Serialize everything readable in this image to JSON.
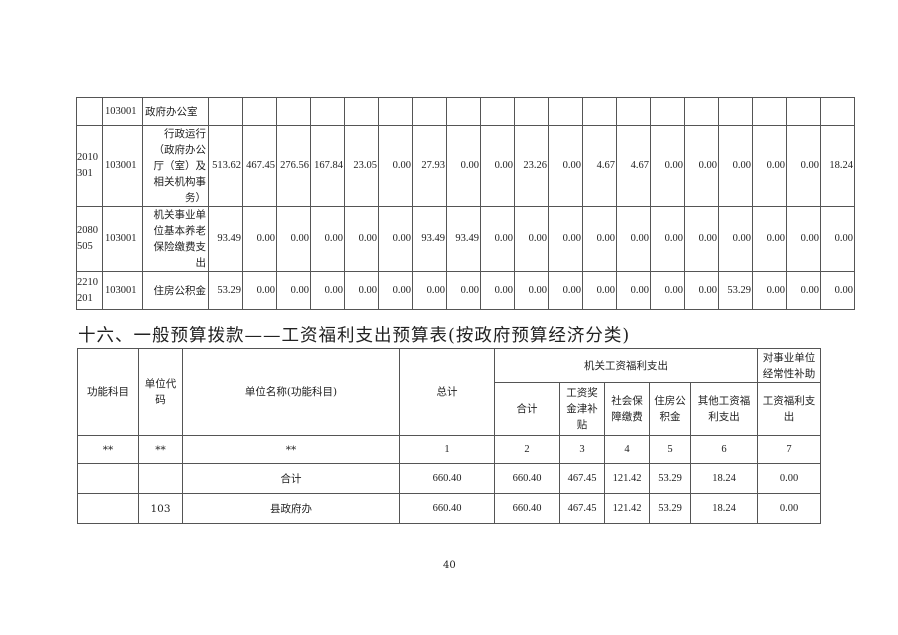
{
  "top_table": {
    "rows": [
      {
        "code": "",
        "unit": "103001",
        "name": "政府办公室",
        "values": [
          "",
          "",
          "",
          "",
          "",
          "",
          "",
          "",
          "",
          "",
          "",
          "",
          "",
          "",
          "",
          "",
          "",
          "",
          ""
        ]
      },
      {
        "code": "2010301",
        "unit": "103001",
        "name": "行政运行（政府办公厅（室）及相关机构事务）",
        "values": [
          "513.62",
          "467.45",
          "276.56",
          "167.84",
          "23.05",
          "0.00",
          "27.93",
          "0.00",
          "0.00",
          "23.26",
          "0.00",
          "4.67",
          "4.67",
          "0.00",
          "0.00",
          "0.00",
          "0.00",
          "0.00",
          "18.24"
        ]
      },
      {
        "code": "2080505",
        "unit": "103001",
        "name": "机关事业单位基本养老保险缴费支出",
        "values": [
          "93.49",
          "0.00",
          "0.00",
          "0.00",
          "0.00",
          "0.00",
          "93.49",
          "93.49",
          "0.00",
          "0.00",
          "0.00",
          "0.00",
          "0.00",
          "0.00",
          "0.00",
          "0.00",
          "0.00",
          "0.00",
          "0.00"
        ]
      },
      {
        "code": "2210201",
        "unit": "103001",
        "name": "住房公积金",
        "values": [
          "53.29",
          "0.00",
          "0.00",
          "0.00",
          "0.00",
          "0.00",
          "0.00",
          "0.00",
          "0.00",
          "0.00",
          "0.00",
          "0.00",
          "0.00",
          "0.00",
          "0.00",
          "53.29",
          "0.00",
          "0.00",
          "0.00"
        ]
      }
    ]
  },
  "section_title": "十六、一般预算拨款——工资福利支出预算表(按政府预算经济分类)",
  "table": {
    "headers": {
      "func": "功能科目",
      "unit_code": "单位代码",
      "unit_name": "单位名称(功能科目)",
      "total": "总计",
      "group1": "机关工资福利支出",
      "group2": "对事业单位经常性补助",
      "sub": [
        "合计",
        "工资奖金津补贴",
        "社会保障缴费",
        "住房公积金",
        "其他工资福利支出",
        "工资福利支出"
      ]
    },
    "index_row": [
      "**",
      "**",
      "**",
      "1",
      "2",
      "3",
      "4",
      "5",
      "6",
      "7"
    ],
    "rows": [
      [
        "",
        "",
        "合计",
        "660.40",
        "660.40",
        "467.45",
        "121.42",
        "53.29",
        "18.24",
        "0.00"
      ],
      [
        "",
        "103",
        "县政府办",
        "660.40",
        "660.40",
        "467.45",
        "121.42",
        "53.29",
        "18.24",
        "0.00"
      ]
    ]
  },
  "page_number": "40"
}
